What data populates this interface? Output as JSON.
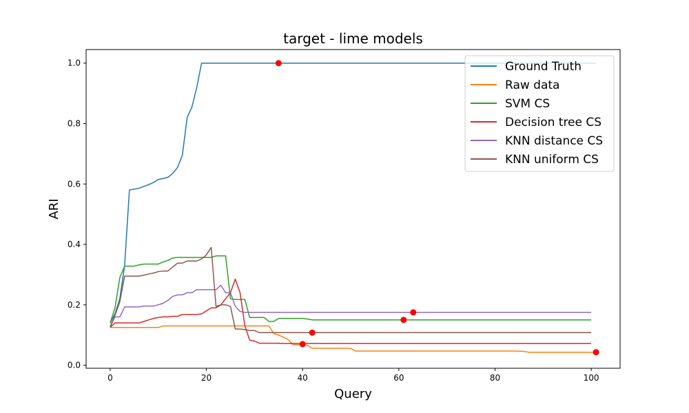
{
  "chart_data": {
    "type": "line",
    "title": "target - lime models",
    "xlabel": "Query",
    "ylabel": "ARI",
    "xlim": [
      -5,
      106
    ],
    "ylim": [
      -0.01,
      1.045
    ],
    "xticks": [
      0,
      20,
      40,
      60,
      80,
      100
    ],
    "yticks": [
      0.0,
      0.2,
      0.4,
      0.6,
      0.8,
      1.0
    ],
    "xtick_labels": [
      "0",
      "20",
      "40",
      "60",
      "80",
      "100"
    ],
    "ytick_labels": [
      "0.0",
      "0.2",
      "0.4",
      "0.6",
      "0.8",
      "1.0"
    ],
    "grid": false,
    "legend_position": "top-right",
    "series": [
      {
        "name": "Ground Truth",
        "color": "#1f77b4",
        "x": [
          0,
          1,
          2,
          3,
          4,
          5,
          6,
          7,
          8,
          9,
          10,
          11,
          12,
          13,
          14,
          15,
          16,
          17,
          18,
          19,
          25,
          35,
          50,
          80,
          101
        ],
        "y": [
          0.14,
          0.17,
          0.22,
          0.33,
          0.58,
          0.583,
          0.586,
          0.592,
          0.598,
          0.605,
          0.615,
          0.618,
          0.622,
          0.635,
          0.655,
          0.695,
          0.82,
          0.855,
          0.92,
          1.0,
          1.0,
          1.0,
          1.0,
          1.0,
          1.0
        ],
        "marker": {
          "x": 35,
          "y": 1.0
        }
      },
      {
        "name": "Raw data",
        "color": "#ff7f0e",
        "x": [
          0,
          10,
          11,
          20,
          30,
          33,
          34,
          35,
          36,
          37,
          38,
          39,
          40,
          41,
          42,
          50,
          51,
          60,
          70,
          84,
          86,
          87,
          88,
          100,
          101
        ],
        "y": [
          0.125,
          0.125,
          0.13,
          0.13,
          0.13,
          0.13,
          0.105,
          0.1,
          0.093,
          0.085,
          0.068,
          0.068,
          0.068,
          0.066,
          0.056,
          0.056,
          0.047,
          0.047,
          0.047,
          0.047,
          0.046,
          0.043,
          0.043,
          0.043,
          0.043
        ],
        "marker": {
          "x": 101,
          "y": 0.043
        }
      },
      {
        "name": "SVM CS",
        "color": "#2ca02c",
        "x": [
          0,
          1,
          2,
          3,
          4,
          5,
          6,
          7,
          8,
          9,
          10,
          11,
          12,
          13,
          14,
          15,
          16,
          17,
          18,
          19,
          20,
          21,
          22,
          23,
          24,
          25,
          26,
          27,
          28,
          29,
          30,
          31,
          32,
          33,
          34,
          35,
          36,
          37,
          38,
          39,
          40,
          41,
          42,
          43,
          50,
          60,
          61,
          70,
          80,
          90,
          100
        ],
        "y": [
          0.14,
          0.19,
          0.29,
          0.328,
          0.328,
          0.328,
          0.332,
          0.335,
          0.335,
          0.335,
          0.335,
          0.342,
          0.347,
          0.355,
          0.357,
          0.357,
          0.357,
          0.357,
          0.357,
          0.357,
          0.357,
          0.357,
          0.362,
          0.362,
          0.362,
          0.22,
          0.218,
          0.218,
          0.218,
          0.158,
          0.158,
          0.158,
          0.158,
          0.145,
          0.145,
          0.155,
          0.155,
          0.155,
          0.155,
          0.155,
          0.155,
          0.153,
          0.15,
          0.15,
          0.15,
          0.15,
          0.15,
          0.15,
          0.15,
          0.15,
          0.15
        ],
        "marker": {
          "x": 61,
          "y": 0.15
        }
      },
      {
        "name": "Decision tree CS",
        "color": "#d62728",
        "x": [
          0,
          1,
          2,
          3,
          4,
          5,
          6,
          7,
          8,
          9,
          10,
          11,
          12,
          13,
          14,
          15,
          16,
          17,
          18,
          19,
          20,
          21,
          22,
          23,
          24,
          25,
          26,
          27,
          28,
          29,
          30,
          31,
          32,
          33,
          34,
          35,
          36,
          37,
          38,
          39,
          40,
          50,
          60,
          80,
          100
        ],
        "y": [
          0.125,
          0.14,
          0.14,
          0.14,
          0.14,
          0.14,
          0.14,
          0.145,
          0.15,
          0.155,
          0.158,
          0.16,
          0.16,
          0.162,
          0.162,
          0.168,
          0.168,
          0.168,
          0.168,
          0.17,
          0.18,
          0.19,
          0.19,
          0.2,
          0.22,
          0.24,
          0.285,
          0.24,
          0.13,
          0.083,
          0.08,
          0.073,
          0.073,
          0.073,
          0.073,
          0.073,
          0.072,
          0.072,
          0.072,
          0.072,
          0.072,
          0.072,
          0.072,
          0.072,
          0.072
        ],
        "marker": {
          "x": 40,
          "y": 0.07
        }
      },
      {
        "name": "KNN distance CS",
        "color": "#9467bd",
        "x": [
          0,
          1,
          2,
          3,
          4,
          5,
          6,
          7,
          8,
          9,
          10,
          11,
          12,
          13,
          14,
          15,
          16,
          17,
          18,
          19,
          20,
          21,
          22,
          23,
          24,
          25,
          26,
          27,
          28,
          40,
          50,
          63,
          70,
          80,
          90,
          100
        ],
        "y": [
          0.13,
          0.16,
          0.16,
          0.193,
          0.193,
          0.193,
          0.193,
          0.196,
          0.196,
          0.196,
          0.2,
          0.205,
          0.215,
          0.228,
          0.233,
          0.233,
          0.24,
          0.24,
          0.25,
          0.25,
          0.25,
          0.25,
          0.25,
          0.265,
          0.24,
          0.24,
          0.195,
          0.178,
          0.175,
          0.175,
          0.175,
          0.175,
          0.175,
          0.175,
          0.175,
          0.175
        ],
        "marker": {
          "x": 63,
          "y": 0.175
        }
      },
      {
        "name": "KNN uniform CS",
        "color": "#8c564b",
        "x": [
          0,
          1,
          2,
          3,
          4,
          5,
          6,
          7,
          8,
          9,
          10,
          11,
          12,
          13,
          14,
          15,
          16,
          17,
          18,
          19,
          20,
          21,
          22,
          23,
          24,
          25,
          26,
          27,
          28,
          29,
          30,
          31,
          42,
          60,
          80,
          100
        ],
        "y": [
          0.125,
          0.165,
          0.21,
          0.295,
          0.295,
          0.295,
          0.295,
          0.298,
          0.302,
          0.305,
          0.31,
          0.312,
          0.312,
          0.325,
          0.338,
          0.338,
          0.345,
          0.345,
          0.345,
          0.352,
          0.365,
          0.39,
          0.195,
          0.2,
          0.2,
          0.195,
          0.12,
          0.12,
          0.118,
          0.115,
          0.115,
          0.108,
          0.108,
          0.108,
          0.108,
          0.108
        ],
        "marker": {
          "x": 42,
          "y": 0.108
        }
      }
    ]
  }
}
